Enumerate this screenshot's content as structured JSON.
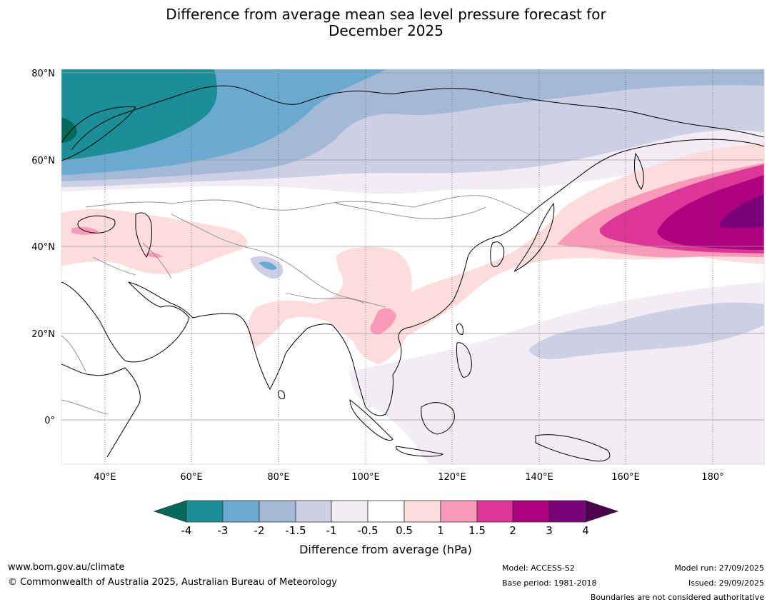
{
  "title_line1": "Difference from average mean sea level pressure forecast for",
  "title_line2": "December 2025",
  "map": {
    "lat_labels": [
      "80°N",
      "60°N",
      "40°N",
      "20°N",
      "0°"
    ],
    "lon_labels": [
      "40°E",
      "60°E",
      "80°E",
      "100°E",
      "120°E",
      "140°E",
      "160°E",
      "180°"
    ]
  },
  "colorbar": {
    "label": "Difference from average (hPa)",
    "ticks": [
      "-4",
      "-3",
      "-2",
      "-1.5",
      "-1",
      "-0.5",
      "0.5",
      "1",
      "1.5",
      "2",
      "3",
      "4"
    ],
    "colors": {
      "below_min": "#016a5b",
      "bin_neg4_neg3": "#1b8f98",
      "bin_neg3_neg2": "#6aaad1",
      "bin_neg2_neg15": "#a3b9d6",
      "bin_neg15_neg1": "#cdcfe4",
      "bin_neg1_neg05": "#f2ecf5",
      "bin_neg05_05": "#ffffff",
      "bin_05_1": "#fddcdc",
      "bin_1_15": "#f99bb8",
      "bin_15_2": "#dc3796",
      "bin_2_3": "#ae017e",
      "bin_3_4": "#7a0177",
      "above_max": "#4d004b"
    }
  },
  "footer": {
    "website": "www.bom.gov.au/climate",
    "copyright": "© Commonwealth of Australia 2025, Australian Bureau of Meteorology",
    "model": "Model: ACCESS-S2",
    "base_period": "Base period: 1981-2018",
    "model_run": "Model run: 27/09/2025",
    "issued": "Issued: 29/09/2025",
    "boundaries": "Boundaries are not considered authoritative"
  }
}
